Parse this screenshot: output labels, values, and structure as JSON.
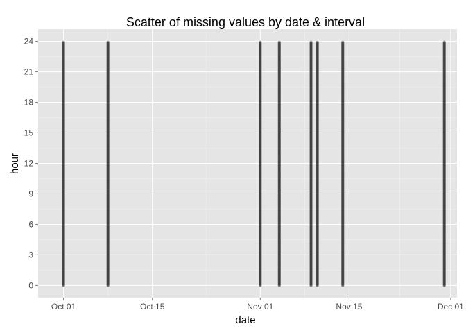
{
  "chart_data": {
    "type": "scatter",
    "title": "Scatter of missing values by date & interval",
    "xlabel": "date",
    "ylabel": "hour",
    "x_ticks": [
      {
        "label": "Oct 01",
        "date": "2012-10-01"
      },
      {
        "label": "Oct 15",
        "date": "2012-10-15"
      },
      {
        "label": "Nov 01",
        "date": "2012-11-01"
      },
      {
        "label": "Nov 15",
        "date": "2012-11-15"
      },
      {
        "label": "Dec 01",
        "date": "2012-12-01"
      }
    ],
    "y_ticks": [
      0,
      3,
      6,
      9,
      12,
      15,
      18,
      21,
      24
    ],
    "xlim": [
      "2012-09-27",
      "2012-12-02"
    ],
    "ylim": [
      -1.2,
      25.2
    ],
    "y_range_per_date": [
      0,
      23.92
    ],
    "y_step_minutes": 5,
    "missing_dates": [
      "2012-10-01",
      "2012-10-08",
      "2012-11-01",
      "2012-11-04",
      "2012-11-09",
      "2012-11-10",
      "2012-11-14",
      "2012-11-30"
    ],
    "grid": true,
    "legend": "none",
    "colors": {
      "panel": "#e5e5e5",
      "grid_major": "#ffffff",
      "grid_minor": "#f2f2f2",
      "point": "#333333"
    }
  }
}
